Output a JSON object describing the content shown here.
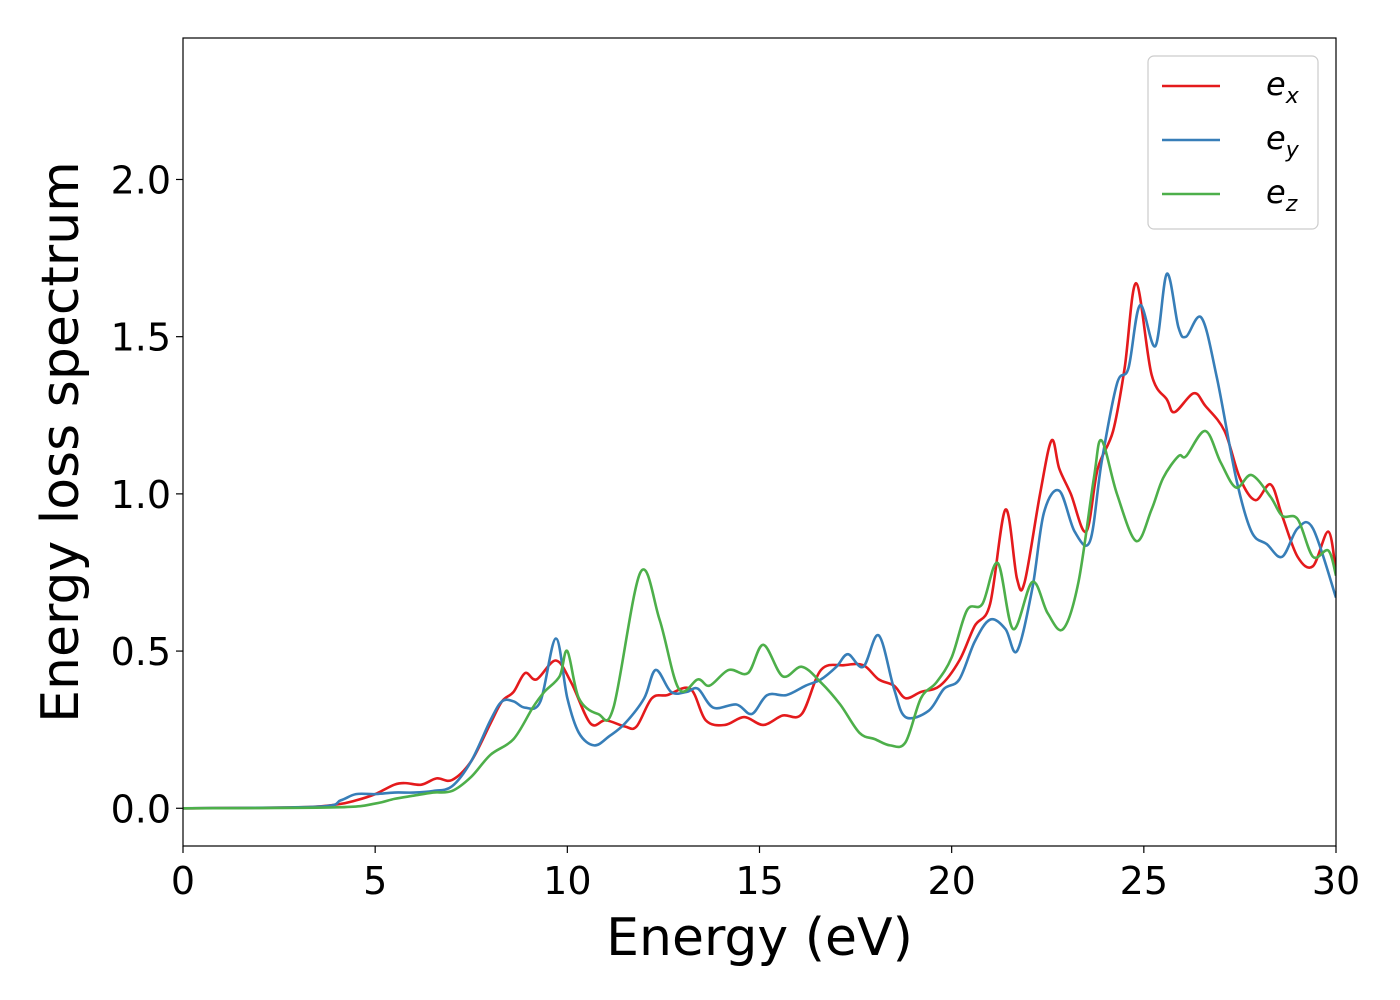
{
  "chart_data": {
    "type": "line",
    "title": "",
    "xlabel": "Energy (eV)",
    "ylabel": "Energy loss spectrum",
    "xlim": [
      0,
      30
    ],
    "ylim": [
      -0.12,
      2.45
    ],
    "xticks": [
      0,
      5,
      10,
      15,
      20,
      25,
      30
    ],
    "xtick_labels": [
      "0",
      "5",
      "10",
      "15",
      "20",
      "25",
      "30"
    ],
    "yticks": [
      0.0,
      0.5,
      1.0,
      1.5,
      2.0
    ],
    "ytick_labels": [
      "0.0",
      "0.5",
      "1.0",
      "1.5",
      "2.0"
    ],
    "grid": false,
    "legend_position": "top-right",
    "series": [
      {
        "name": "e_x",
        "label_base": "e",
        "label_sub": "x",
        "color": "#e41a1c",
        "points": [
          [
            0,
            0
          ],
          [
            3,
            0.003
          ],
          [
            4,
            0.012
          ],
          [
            4.5,
            0.025
          ],
          [
            5,
            0.045
          ],
          [
            5.5,
            0.075
          ],
          [
            5.8,
            0.08
          ],
          [
            6.2,
            0.075
          ],
          [
            6.6,
            0.095
          ],
          [
            7,
            0.09
          ],
          [
            7.5,
            0.15
          ],
          [
            8,
            0.27
          ],
          [
            8.3,
            0.34
          ],
          [
            8.6,
            0.37
          ],
          [
            8.9,
            0.43
          ],
          [
            9.2,
            0.41
          ],
          [
            9.7,
            0.47
          ],
          [
            10.1,
            0.4
          ],
          [
            10.6,
            0.27
          ],
          [
            11,
            0.28
          ],
          [
            11.5,
            0.26
          ],
          [
            11.8,
            0.26
          ],
          [
            12.2,
            0.35
          ],
          [
            12.6,
            0.36
          ],
          [
            13.2,
            0.38
          ],
          [
            13.6,
            0.28
          ],
          [
            14.1,
            0.265
          ],
          [
            14.6,
            0.29
          ],
          [
            15.1,
            0.265
          ],
          [
            15.6,
            0.295
          ],
          [
            16.1,
            0.3
          ],
          [
            16.6,
            0.44
          ],
          [
            17.2,
            0.455
          ],
          [
            17.7,
            0.455
          ],
          [
            18.1,
            0.41
          ],
          [
            18.5,
            0.39
          ],
          [
            18.8,
            0.35
          ],
          [
            19.2,
            0.37
          ],
          [
            19.7,
            0.39
          ],
          [
            20.2,
            0.47
          ],
          [
            20.6,
            0.58
          ],
          [
            21,
            0.65
          ],
          [
            21.4,
            0.95
          ],
          [
            21.7,
            0.73
          ],
          [
            21.9,
            0.72
          ],
          [
            22.3,
            1.0
          ],
          [
            22.6,
            1.17
          ],
          [
            22.8,
            1.08
          ],
          [
            23.1,
            1.0
          ],
          [
            23.5,
            0.88
          ],
          [
            23.8,
            1.08
          ],
          [
            24.2,
            1.2
          ],
          [
            24.5,
            1.4
          ],
          [
            24.8,
            1.67
          ],
          [
            25.2,
            1.38
          ],
          [
            25.6,
            1.3
          ],
          [
            25.8,
            1.26
          ],
          [
            26.3,
            1.32
          ],
          [
            26.6,
            1.28
          ],
          [
            27.1,
            1.2
          ],
          [
            27.5,
            1.05
          ],
          [
            27.9,
            0.98
          ],
          [
            28.3,
            1.03
          ],
          [
            28.6,
            0.93
          ],
          [
            29,
            0.8
          ],
          [
            29.4,
            0.77
          ],
          [
            29.8,
            0.88
          ],
          [
            30,
            0.75
          ]
        ]
      },
      {
        "name": "e_y",
        "label_base": "e",
        "label_sub": "y",
        "color": "#377eb8",
        "points": [
          [
            0,
            0
          ],
          [
            3.5,
            0.005
          ],
          [
            4.1,
            0.025
          ],
          [
            4.5,
            0.045
          ],
          [
            5,
            0.045
          ],
          [
            5.5,
            0.05
          ],
          [
            6,
            0.05
          ],
          [
            6.5,
            0.055
          ],
          [
            7,
            0.07
          ],
          [
            7.5,
            0.15
          ],
          [
            8,
            0.28
          ],
          [
            8.3,
            0.34
          ],
          [
            8.6,
            0.34
          ],
          [
            8.9,
            0.32
          ],
          [
            9.3,
            0.34
          ],
          [
            9.7,
            0.54
          ],
          [
            10,
            0.35
          ],
          [
            10.3,
            0.24
          ],
          [
            10.7,
            0.2
          ],
          [
            11.1,
            0.23
          ],
          [
            11.5,
            0.27
          ],
          [
            12,
            0.35
          ],
          [
            12.3,
            0.44
          ],
          [
            12.7,
            0.37
          ],
          [
            13.1,
            0.37
          ],
          [
            13.4,
            0.38
          ],
          [
            13.8,
            0.32
          ],
          [
            14.4,
            0.33
          ],
          [
            14.8,
            0.3
          ],
          [
            15.2,
            0.36
          ],
          [
            15.7,
            0.36
          ],
          [
            16.2,
            0.39
          ],
          [
            16.6,
            0.41
          ],
          [
            17,
            0.45
          ],
          [
            17.3,
            0.49
          ],
          [
            17.7,
            0.45
          ],
          [
            18.1,
            0.55
          ],
          [
            18.5,
            0.38
          ],
          [
            18.8,
            0.29
          ],
          [
            19.4,
            0.31
          ],
          [
            19.8,
            0.38
          ],
          [
            20.2,
            0.41
          ],
          [
            20.6,
            0.53
          ],
          [
            21,
            0.6
          ],
          [
            21.4,
            0.57
          ],
          [
            21.7,
            0.5
          ],
          [
            22.1,
            0.7
          ],
          [
            22.4,
            0.94
          ],
          [
            22.8,
            1.01
          ],
          [
            23.2,
            0.88
          ],
          [
            23.6,
            0.85
          ],
          [
            23.9,
            1.1
          ],
          [
            24.3,
            1.35
          ],
          [
            24.6,
            1.4
          ],
          [
            24.9,
            1.6
          ],
          [
            25.3,
            1.47
          ],
          [
            25.6,
            1.7
          ],
          [
            25.9,
            1.53
          ],
          [
            26.1,
            1.5
          ],
          [
            26.5,
            1.56
          ],
          [
            26.9,
            1.37
          ],
          [
            27.4,
            1.05
          ],
          [
            27.8,
            0.88
          ],
          [
            28.2,
            0.84
          ],
          [
            28.6,
            0.8
          ],
          [
            29,
            0.89
          ],
          [
            29.4,
            0.89
          ],
          [
            30,
            0.67
          ]
        ]
      },
      {
        "name": "e_z",
        "label_base": "e",
        "label_sub": "z",
        "color": "#4daf4a",
        "points": [
          [
            0,
            0
          ],
          [
            4,
            0.003
          ],
          [
            5,
            0.015
          ],
          [
            5.5,
            0.03
          ],
          [
            6,
            0.04
          ],
          [
            6.5,
            0.05
          ],
          [
            7,
            0.055
          ],
          [
            7.5,
            0.1
          ],
          [
            8,
            0.17
          ],
          [
            8.6,
            0.22
          ],
          [
            9.1,
            0.32
          ],
          [
            9.4,
            0.37
          ],
          [
            9.8,
            0.42
          ],
          [
            10,
            0.5
          ],
          [
            10.3,
            0.35
          ],
          [
            10.8,
            0.3
          ],
          [
            11.2,
            0.32
          ],
          [
            11.9,
            0.75
          ],
          [
            12.4,
            0.6
          ],
          [
            12.9,
            0.38
          ],
          [
            13.4,
            0.41
          ],
          [
            13.7,
            0.39
          ],
          [
            14.2,
            0.44
          ],
          [
            14.7,
            0.43
          ],
          [
            15.1,
            0.52
          ],
          [
            15.6,
            0.42
          ],
          [
            16.1,
            0.45
          ],
          [
            16.6,
            0.4
          ],
          [
            17.1,
            0.33
          ],
          [
            17.6,
            0.24
          ],
          [
            18,
            0.22
          ],
          [
            18.4,
            0.2
          ],
          [
            18.8,
            0.21
          ],
          [
            19.2,
            0.35
          ],
          [
            19.6,
            0.4
          ],
          [
            20,
            0.48
          ],
          [
            20.4,
            0.63
          ],
          [
            20.8,
            0.65
          ],
          [
            21.2,
            0.78
          ],
          [
            21.6,
            0.57
          ],
          [
            22.1,
            0.72
          ],
          [
            22.5,
            0.62
          ],
          [
            22.9,
            0.57
          ],
          [
            23.3,
            0.72
          ],
          [
            23.7,
            1.05
          ],
          [
            23.9,
            1.17
          ],
          [
            24.3,
            1.0
          ],
          [
            24.8,
            0.85
          ],
          [
            25.2,
            0.95
          ],
          [
            25.5,
            1.05
          ],
          [
            25.9,
            1.12
          ],
          [
            26.1,
            1.12
          ],
          [
            26.6,
            1.2
          ],
          [
            27,
            1.1
          ],
          [
            27.4,
            1.02
          ],
          [
            27.8,
            1.06
          ],
          [
            28.3,
            0.99
          ],
          [
            28.6,
            0.93
          ],
          [
            29,
            0.92
          ],
          [
            29.4,
            0.8
          ],
          [
            29.8,
            0.82
          ],
          [
            30,
            0.74
          ]
        ]
      }
    ]
  }
}
